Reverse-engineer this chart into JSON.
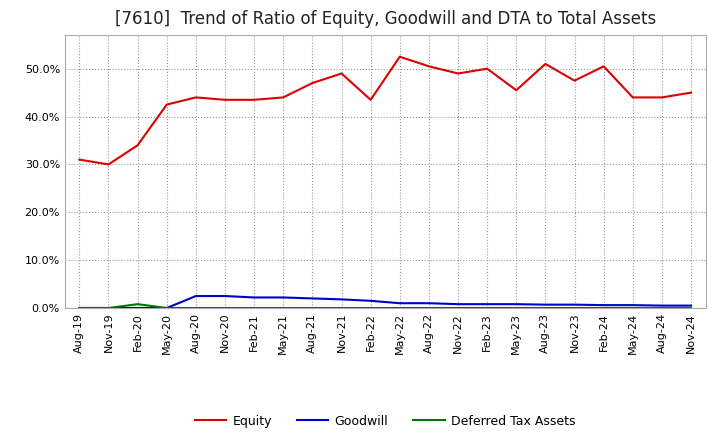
{
  "title": "[7610]  Trend of Ratio of Equity, Goodwill and DTA to Total Assets",
  "x_labels": [
    "Aug-19",
    "Nov-19",
    "Feb-20",
    "May-20",
    "Aug-20",
    "Nov-20",
    "Feb-21",
    "May-21",
    "Aug-21",
    "Nov-21",
    "Feb-22",
    "May-22",
    "Aug-22",
    "Nov-22",
    "Feb-23",
    "May-23",
    "Aug-23",
    "Nov-23",
    "Feb-24",
    "May-24",
    "Aug-24",
    "Nov-24"
  ],
  "equity": [
    0.31,
    0.3,
    0.34,
    0.425,
    0.44,
    0.435,
    0.435,
    0.44,
    0.47,
    0.49,
    0.435,
    0.525,
    0.505,
    0.49,
    0.5,
    0.455,
    0.51,
    0.475,
    0.505,
    0.44,
    0.44,
    0.45
  ],
  "goodwill": [
    0.0,
    0.0,
    0.0,
    0.0,
    0.025,
    0.025,
    0.022,
    0.022,
    0.02,
    0.018,
    0.015,
    0.01,
    0.01,
    0.008,
    0.008,
    0.008,
    0.007,
    0.007,
    0.006,
    0.006,
    0.005,
    0.005
  ],
  "dta": [
    0.0,
    0.0,
    0.008,
    0.0,
    0.0,
    0.0,
    0.0,
    0.0,
    0.0,
    0.0,
    0.0,
    0.0,
    0.0,
    0.0,
    0.0,
    0.0,
    0.0,
    0.0,
    0.0,
    0.0,
    0.0,
    0.0
  ],
  "equity_color": "#dd0000",
  "goodwill_color": "#0000cc",
  "dta_color": "#007700",
  "background_color": "#ffffff",
  "plot_bg_color": "#ffffff",
  "grid_color": "#999999",
  "spine_color": "#aaaaaa",
  "ylim": [
    0.0,
    0.57
  ],
  "yticks": [
    0.0,
    0.1,
    0.2,
    0.3,
    0.4,
    0.5
  ],
  "title_fontsize": 12,
  "tick_fontsize": 8,
  "legend_labels": [
    "Equity",
    "Goodwill",
    "Deferred Tax Assets"
  ]
}
